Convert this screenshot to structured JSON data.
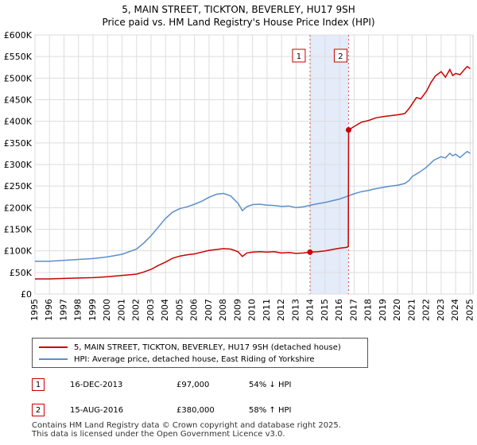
{
  "chart_data": {
    "type": "line",
    "title": "5, MAIN STREET, TICKTON, BEVERLEY, HU17 9SH",
    "subtitle": "Price paid vs. HM Land Registry's House Price Index (HPI)",
    "xlim": [
      1995,
      2025.2
    ],
    "ylim": [
      0,
      600000
    ],
    "y_ticks": [
      0,
      50000,
      100000,
      150000,
      200000,
      250000,
      300000,
      350000,
      400000,
      450000,
      500000,
      550000,
      600000
    ],
    "y_tick_labels": [
      "£0",
      "£50K",
      "£100K",
      "£150K",
      "£200K",
      "£250K",
      "£300K",
      "£350K",
      "£400K",
      "£450K",
      "£500K",
      "£550K",
      "£600K"
    ],
    "x_ticks": [
      1995,
      1996,
      1997,
      1998,
      1999,
      2000,
      2001,
      2002,
      2003,
      2004,
      2005,
      2006,
      2007,
      2008,
      2009,
      2010,
      2011,
      2012,
      2013,
      2014,
      2015,
      2016,
      2017,
      2018,
      2019,
      2020,
      2021,
      2022,
      2023,
      2024,
      2025
    ],
    "x_tick_labels": [
      "1995",
      "1996",
      "1997",
      "1998",
      "1999",
      "2000",
      "2001",
      "2002",
      "2003",
      "2004",
      "2005",
      "2006",
      "2007",
      "2008",
      "2009",
      "2010",
      "2011",
      "2012",
      "2013",
      "2014",
      "2015",
      "2016",
      "2017",
      "2018",
      "2019",
      "2020",
      "2021",
      "2022",
      "2023",
      "2024",
      "2025"
    ],
    "grid": true,
    "shaded_region": [
      2013.96,
      2016.62
    ],
    "series": [
      {
        "name": "5, MAIN STREET, TICKTON, BEVERLEY, HU17 9SH (detached house)",
        "color": "#cc0000",
        "points": [
          [
            1995,
            35000
          ],
          [
            1996,
            35000
          ],
          [
            1997,
            36000
          ],
          [
            1998,
            37000
          ],
          [
            1999,
            38000
          ],
          [
            2000,
            40000
          ],
          [
            2001,
            43000
          ],
          [
            2002,
            46000
          ],
          [
            2002.5,
            51000
          ],
          [
            2003,
            57000
          ],
          [
            2003.5,
            66000
          ],
          [
            2004,
            74000
          ],
          [
            2004.5,
            83000
          ],
          [
            2005,
            88000
          ],
          [
            2005.5,
            91000
          ],
          [
            2006,
            93000
          ],
          [
            2006.5,
            97000
          ],
          [
            2007,
            101000
          ],
          [
            2007.5,
            103000
          ],
          [
            2008,
            105000
          ],
          [
            2008.5,
            104000
          ],
          [
            2009,
            98000
          ],
          [
            2009.3,
            87000
          ],
          [
            2009.6,
            95000
          ],
          [
            2010,
            97000
          ],
          [
            2010.5,
            98000
          ],
          [
            2011,
            97000
          ],
          [
            2011.5,
            98000
          ],
          [
            2012,
            95000
          ],
          [
            2012.5,
            96000
          ],
          [
            2013,
            94000
          ],
          [
            2013.5,
            95000
          ],
          [
            2013.96,
            97000
          ],
          [
            2014.5,
            98000
          ],
          [
            2015,
            100000
          ],
          [
            2015.5,
            103000
          ],
          [
            2016,
            106000
          ],
          [
            2016.5,
            108000
          ],
          [
            2016.6,
            110000
          ],
          [
            2016.62,
            380000
          ],
          [
            2017,
            388000
          ],
          [
            2017.5,
            398000
          ],
          [
            2018,
            402000
          ],
          [
            2018.5,
            408000
          ],
          [
            2019,
            411000
          ],
          [
            2019.5,
            413000
          ],
          [
            2020,
            415000
          ],
          [
            2020.5,
            418000
          ],
          [
            2020.8,
            430000
          ],
          [
            2021,
            440000
          ],
          [
            2021.3,
            455000
          ],
          [
            2021.6,
            452000
          ],
          [
            2022,
            470000
          ],
          [
            2022.3,
            490000
          ],
          [
            2022.6,
            505000
          ],
          [
            2023,
            515000
          ],
          [
            2023.3,
            502000
          ],
          [
            2023.6,
            520000
          ],
          [
            2023.8,
            506000
          ],
          [
            2024,
            511000
          ],
          [
            2024.3,
            508000
          ],
          [
            2024.6,
            520000
          ],
          [
            2024.8,
            527000
          ],
          [
            2025.0,
            522000
          ]
        ]
      },
      {
        "name": "HPI: Average price, detached house, East Riding of Yorkshire",
        "color": "#5b8fc9",
        "points": [
          [
            1995,
            76000
          ],
          [
            1996,
            76000
          ],
          [
            1997,
            78000
          ],
          [
            1998,
            80000
          ],
          [
            1999,
            82000
          ],
          [
            2000,
            86000
          ],
          [
            2001,
            92000
          ],
          [
            2002,
            104000
          ],
          [
            2002.5,
            118000
          ],
          [
            2003,
            135000
          ],
          [
            2003.5,
            155000
          ],
          [
            2004,
            175000
          ],
          [
            2004.5,
            190000
          ],
          [
            2005,
            198000
          ],
          [
            2005.5,
            202000
          ],
          [
            2006,
            208000
          ],
          [
            2006.5,
            215000
          ],
          [
            2007,
            224000
          ],
          [
            2007.5,
            231000
          ],
          [
            2008,
            233000
          ],
          [
            2008.5,
            227000
          ],
          [
            2009,
            210000
          ],
          [
            2009.3,
            193000
          ],
          [
            2009.6,
            202000
          ],
          [
            2010,
            207000
          ],
          [
            2010.5,
            208000
          ],
          [
            2011,
            206000
          ],
          [
            2011.5,
            205000
          ],
          [
            2012,
            203000
          ],
          [
            2012.5,
            204000
          ],
          [
            2013,
            200000
          ],
          [
            2013.5,
            202000
          ],
          [
            2014,
            206000
          ],
          [
            2014.5,
            209000
          ],
          [
            2015,
            212000
          ],
          [
            2015.5,
            216000
          ],
          [
            2016,
            220000
          ],
          [
            2016.5,
            226000
          ],
          [
            2017,
            232000
          ],
          [
            2017.5,
            237000
          ],
          [
            2018,
            240000
          ],
          [
            2018.5,
            244000
          ],
          [
            2019,
            247000
          ],
          [
            2019.5,
            250000
          ],
          [
            2020,
            252000
          ],
          [
            2020.5,
            256000
          ],
          [
            2020.8,
            263000
          ],
          [
            2021,
            272000
          ],
          [
            2021.5,
            282000
          ],
          [
            2022,
            294000
          ],
          [
            2022.5,
            310000
          ],
          [
            2023,
            318000
          ],
          [
            2023.3,
            315000
          ],
          [
            2023.6,
            326000
          ],
          [
            2023.8,
            320000
          ],
          [
            2024,
            324000
          ],
          [
            2024.3,
            316000
          ],
          [
            2024.6,
            325000
          ],
          [
            2024.8,
            330000
          ],
          [
            2025.0,
            326000
          ]
        ]
      }
    ],
    "annotations": [
      {
        "label": "1",
        "x": 2013.96,
        "y": 97000
      },
      {
        "label": "2",
        "x": 2016.62,
        "y": 380000
      }
    ]
  },
  "legend": {
    "items": [
      {
        "label": "5, MAIN STREET, TICKTON, BEVERLEY, HU17 9SH (detached house)",
        "color": "#cc0000"
      },
      {
        "label": "HPI: Average price, detached house, East Riding of Yorkshire",
        "color": "#5b8fc9"
      }
    ]
  },
  "transactions": [
    {
      "num": "1",
      "date": "16-DEC-2013",
      "price": "£97,000",
      "hpi": "54% ↓ HPI"
    },
    {
      "num": "2",
      "date": "15-AUG-2016",
      "price": "£380,000",
      "hpi": "58% ↑ HPI"
    }
  ],
  "footer": {
    "line1": "Contains HM Land Registry data © Crown copyright and database right 2025.",
    "line2": "This data is licensed under the Open Government Licence v3.0."
  }
}
